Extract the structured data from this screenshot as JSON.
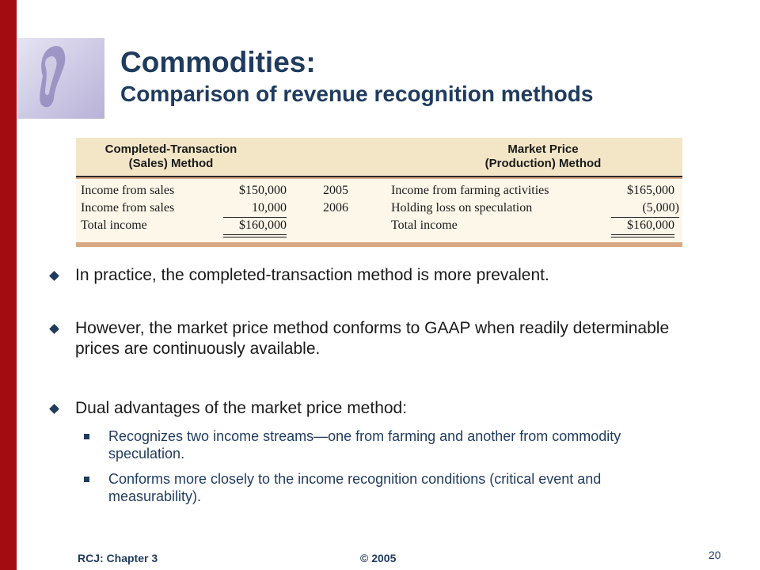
{
  "slide": {
    "title": "Commodities:",
    "subtitle": "Comparison of revenue recognition methods"
  },
  "table": {
    "left_header": [
      "Completed-Transaction",
      "(Sales) Method"
    ],
    "right_header": [
      "Market Price",
      "(Production) Method"
    ],
    "rows": [
      {
        "left_label": "Income from sales",
        "left_amount": "$150,000",
        "year": "2005",
        "right_label": "Income from farming activities",
        "right_amount": "$165,000"
      },
      {
        "left_label": "Income from sales",
        "left_amount": "10,000",
        "year": "2006",
        "right_label": "Holding loss on speculation",
        "right_amount": "(5,000)"
      },
      {
        "left_label": "Total income",
        "left_amount": "$160,000",
        "year": "",
        "right_label": "Total income",
        "right_amount": "$160,000"
      }
    ]
  },
  "bullets": [
    "In practice, the completed-transaction method is more prevalent.",
    "However, the market price method conforms to GAAP when readily determinable prices are continuously available.",
    "Dual advantages of the market price method:"
  ],
  "sub_bullets": [
    "Recognizes two income streams—one from farming and another from commodity speculation.",
    "Conforms more closely to the income recognition conditions (critical event and measurability)."
  ],
  "footer": {
    "left": "RCJ: Chapter 3",
    "center": "© 2005",
    "page_number": "20"
  },
  "colors": {
    "accent_bar": "#a30d12",
    "title": "#1f3b5e",
    "table_header": "#f3e6c7",
    "table_rule": "#d9a985"
  },
  "icons": [
    "keyhole-logo-icon",
    "diamond-bullet-icon",
    "square-bullet-icon"
  ]
}
